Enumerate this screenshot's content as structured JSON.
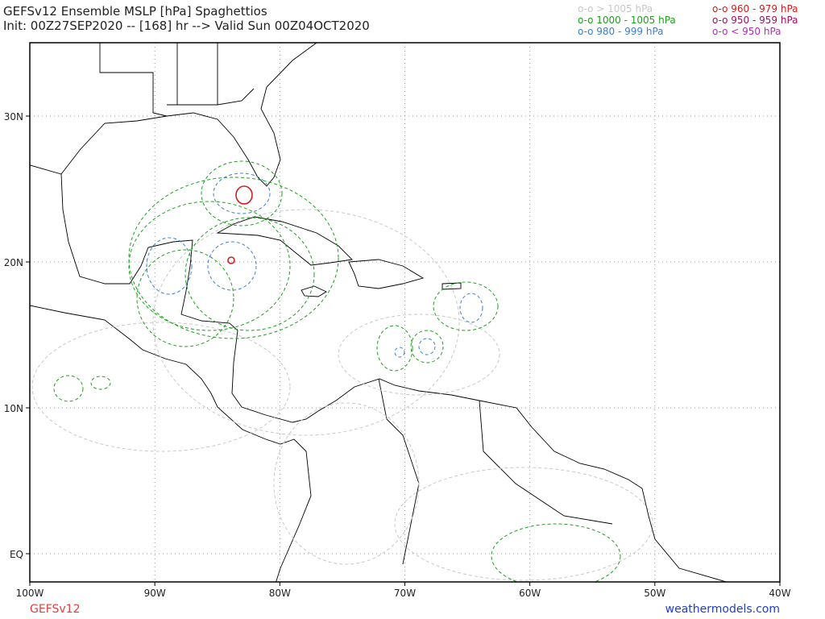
{
  "header": {
    "title": "GEFSv12 Ensemble MSLP [hPa] Spaghettios",
    "subtitle": "Init: 00Z27SEP2020 -- [168] hr --> Valid Sun 00Z04OCT2020"
  },
  "legend": [
    {
      "label": "o-o > 1005 hPa",
      "color": "#c8c8c8"
    },
    {
      "label": "o-o 1000 - 1005 hPa",
      "color": "#1f9e1f"
    },
    {
      "label": "o-o 980 - 999 hPa",
      "color": "#3b7fd0"
    },
    {
      "label": "o-o 960 - 979 hPa",
      "color": "#cc1f1f"
    },
    {
      "label": "o-o 950 - 959 hPa",
      "color": "#a01060"
    },
    {
      "label": "o-o < 950 hPa",
      "color": "#b030b8"
    }
  ],
  "map": {
    "lat_labels": [
      "30N",
      "20N",
      "10N",
      "EQ"
    ],
    "lon_labels": [
      "100W",
      "90W",
      "80W",
      "70W",
      "60W",
      "50W",
      "40W"
    ]
  },
  "footer": {
    "model": "GEFSv12",
    "site": "weathermodels.com"
  }
}
